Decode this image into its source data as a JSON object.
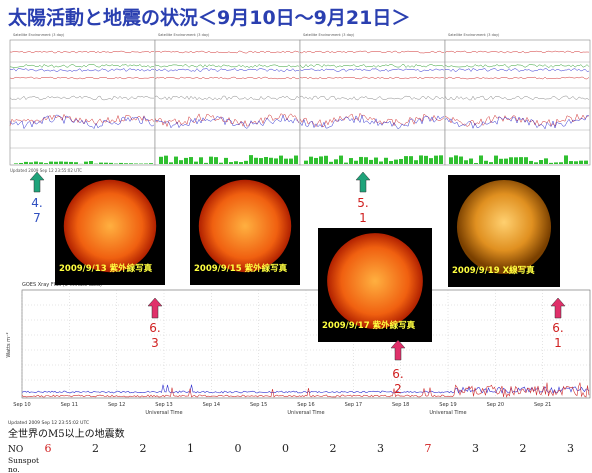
{
  "title": "太陽活動と地震の状況＜9月10日～9月21日＞",
  "top_plot": {
    "header": "Satellite Environment (3 day)",
    "footer": "Updated 2009 Sep 12 23:55:02 UTC"
  },
  "photos": [
    {
      "caption": "2009/9/13 紫外線写真",
      "kind": "uv"
    },
    {
      "caption": "2009/9/15 紫外線写真",
      "kind": "uv"
    },
    {
      "caption": "2009/9/17 紫外線写真",
      "kind": "uv"
    },
    {
      "caption": "2009/9/19 X線写真",
      "kind": "xray"
    }
  ],
  "markers": [
    {
      "lines": [
        "4.",
        "7"
      ],
      "arrow_color": "#1fa37a",
      "text_color": "#3050c0"
    },
    {
      "lines": [
        "5.",
        "1"
      ],
      "arrow_color": "#1fa37a",
      "text_color": "#d02020"
    },
    {
      "lines": [
        "6.",
        "3"
      ],
      "arrow_color": "#e0306a",
      "text_color": "#d02020"
    },
    {
      "lines": [
        "6.",
        "2"
      ],
      "arrow_color": "#e0306a",
      "text_color": "#d02020"
    },
    {
      "lines": [
        "6.",
        "1"
      ],
      "arrow_color": "#e0306a",
      "text_color": "#d02020"
    }
  ],
  "xray_plot": {
    "header": "GOES Xray Flux (5 minute data)",
    "ylabel": "Watts m⁻²",
    "xlabel": "Universal Time",
    "dates": [
      "Sep 10",
      "Sep 11",
      "Sep 12",
      "Sep 13",
      "Sep 14",
      "Sep 15",
      "Sep 16",
      "Sep 17",
      "Sep 18",
      "Sep 19",
      "Sep 20",
      "Sep 21"
    ],
    "footer": "Updated 2009 Sep 12 23:55:02 UTC"
  },
  "quake_table": {
    "heading": "全世界のM5以上の地震数",
    "row_label": "NO",
    "counts": [
      6,
      2,
      2,
      1,
      0,
      0,
      2,
      3,
      7,
      3,
      2,
      3
    ],
    "count_colors": [
      "#d02020",
      "#222",
      "#222",
      "#222",
      "#222",
      "#222",
      "#222",
      "#222",
      "#d02020",
      "#222",
      "#222",
      "#222"
    ],
    "sunspot_label": [
      "Sunspot",
      "no."
    ]
  }
}
